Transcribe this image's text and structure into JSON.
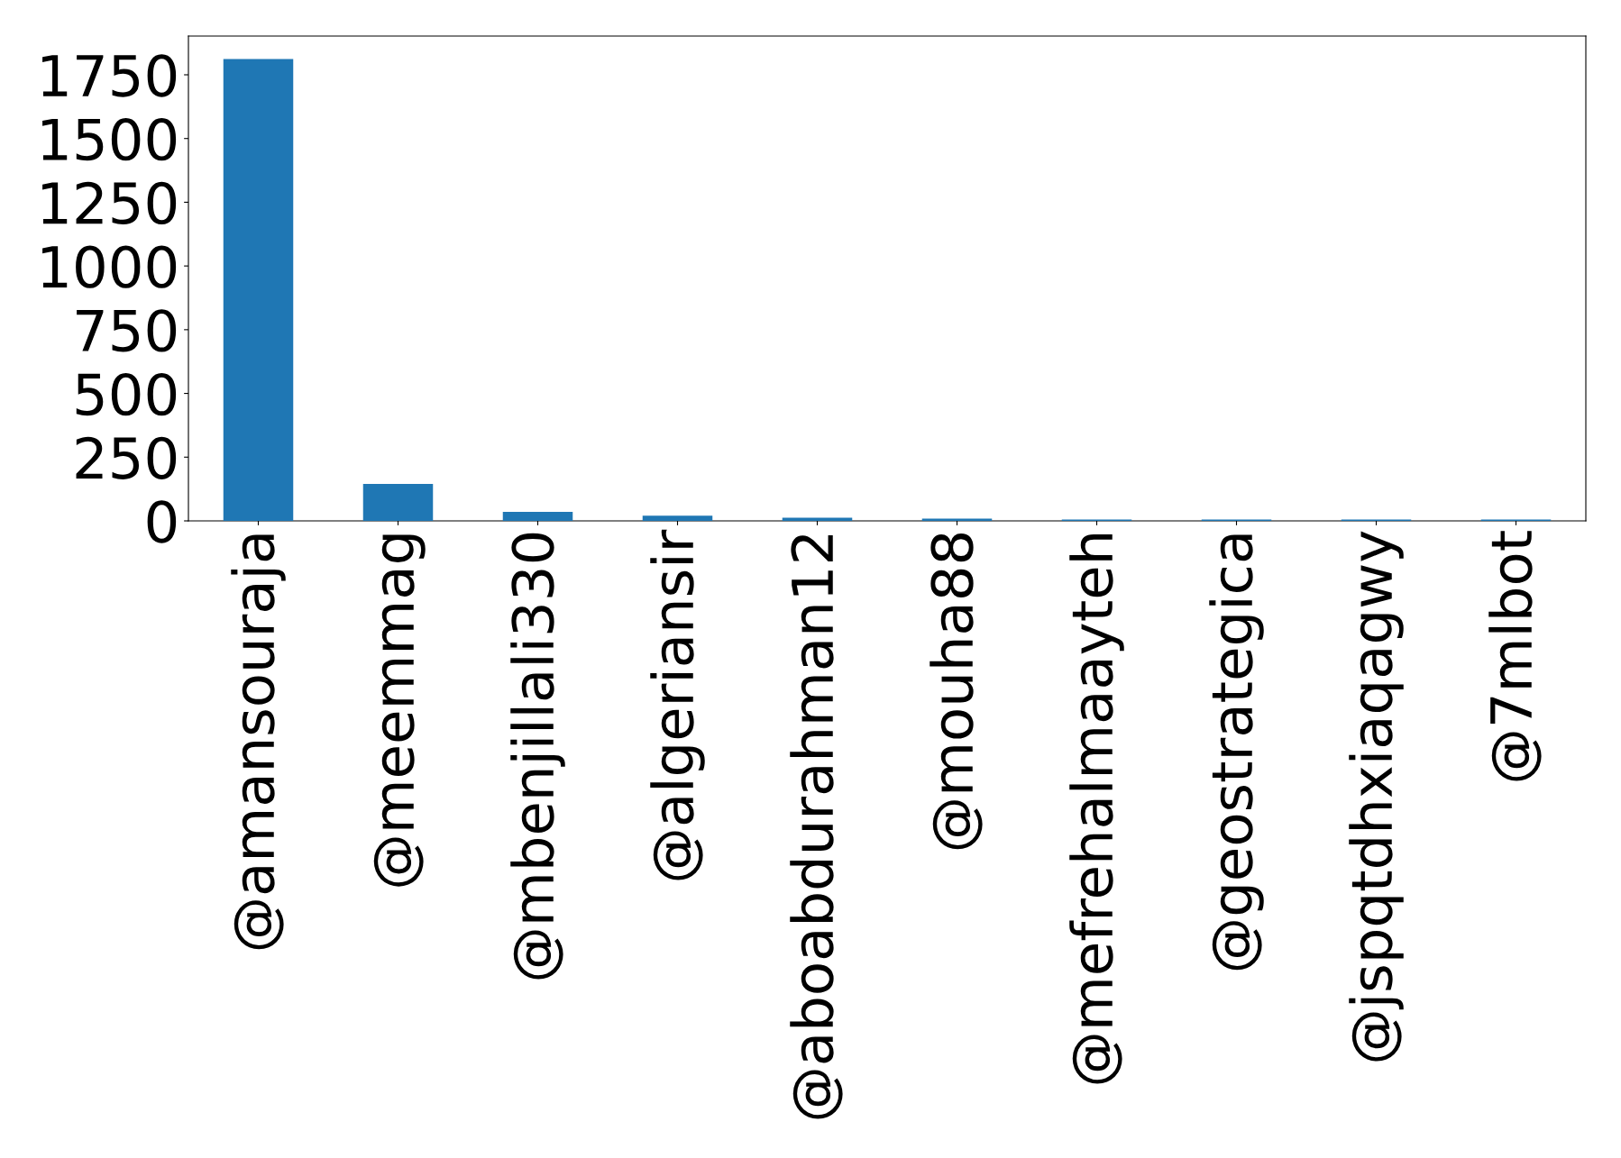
{
  "chart_data": {
    "type": "bar",
    "categories": [
      "@amansouraja",
      "@meemmag",
      "@mbenjillali330",
      "@algeriansir",
      "@aboabdurahman12",
      "@mouha88",
      "@mefrehalmaayteh",
      "@geostrategica",
      "@jspqtdhxiaqagwy",
      "@7mlbot"
    ],
    "values": [
      1812,
      145,
      35,
      20,
      12,
      9,
      5,
      5,
      5,
      5
    ],
    "color": "#1f77b4",
    "ylim": [
      0,
      1902
    ],
    "yticks": [
      0,
      250,
      500,
      750,
      1000,
      1250,
      1500,
      1750
    ],
    "grid": false,
    "legend": false
  }
}
